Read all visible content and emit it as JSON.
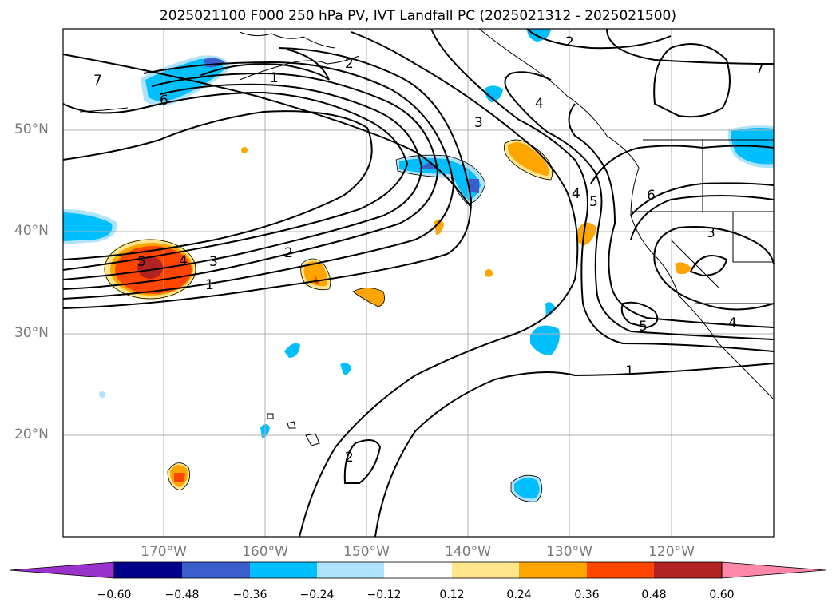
{
  "title": "2025021100 F000 250 hPa PV, IVT Landfall PC (2025021312 - 2025021500)",
  "lat_labels": [
    "50°N",
    "40°N",
    "30°N",
    "20°N"
  ],
  "lon_labels": [
    "170°W",
    "160°W",
    "150°W",
    "140°W",
    "130°W",
    "120°W"
  ],
  "contour_labels": [
    "7",
    "6",
    "1",
    "2",
    "3",
    "4",
    "5",
    "4",
    "5",
    "3",
    "2",
    "1",
    "6",
    "3",
    "4",
    "5",
    "1",
    "2",
    "2",
    "4",
    "7"
  ],
  "colorbar": {
    "ticks": [
      "−0.60",
      "−0.48",
      "−0.36",
      "−0.24",
      "−0.12",
      "0.12",
      "0.24",
      "0.36",
      "0.48",
      "0.60"
    ],
    "colors": [
      "#9932cc",
      "#00008b",
      "#3a5fcd",
      "#00bfff",
      "#aee3fb",
      "#ffffff",
      "#ffe68c",
      "#ffa500",
      "#ff4500",
      "#b22222",
      "#ff88aa"
    ]
  },
  "map": {
    "lat_range": [
      10,
      60
    ],
    "lon_range": [
      -180,
      -110
    ],
    "grid": true,
    "colors": {
      "neg_strong": "#3a5fcd",
      "neg": "#00bfff",
      "neg_light": "#aee3fb",
      "pos_light": "#ffe68c",
      "pos": "#ffa500",
      "pos_strong": "#ff4500",
      "pos_max": "#b22222"
    }
  }
}
